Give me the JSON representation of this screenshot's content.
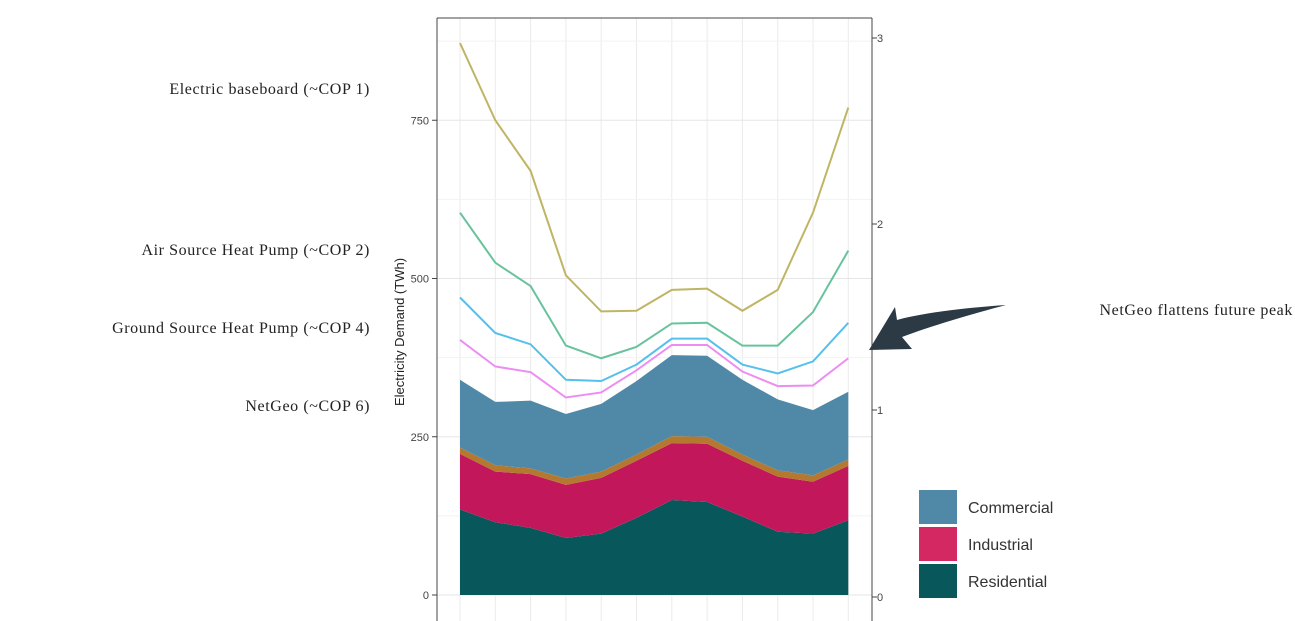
{
  "chart_data": {
    "type": "area",
    "title": "",
    "xlabel": "",
    "ylabel": "Electricity Demand (TWh)",
    "ylim": [
      0,
      920
    ],
    "yticks": [
      0,
      250,
      500,
      750
    ],
    "y2ticks": [
      "0",
      "1",
      "2",
      "3"
    ],
    "x": [
      1,
      2,
      3,
      4,
      5,
      6,
      7,
      8,
      9,
      10,
      11,
      12
    ],
    "stacked_series": [
      {
        "name": "Residential",
        "color": "#07575b",
        "values": [
          135,
          115,
          106,
          90,
          97,
          122,
          150,
          147,
          124,
          100,
          97,
          118
        ]
      },
      {
        "name": "",
        "color": "#c2185b",
        "values": [
          88,
          80,
          85,
          84,
          88,
          90,
          90,
          92,
          88,
          87,
          82,
          86
        ]
      },
      {
        "name": "Industrial",
        "color": "#d42863",
        "values": [
          0,
          0,
          0,
          0,
          0,
          0,
          0,
          0,
          0,
          0,
          0,
          0
        ]
      },
      {
        "name": "",
        "color": "#b5782f",
        "values": [
          10,
          10,
          9,
          10,
          10,
          10,
          11,
          11,
          10,
          10,
          10,
          10
        ]
      },
      {
        "name": "Commercial",
        "color": "#5089a8",
        "values": [
          107,
          100,
          107,
          102,
          107,
          116,
          128,
          128,
          118,
          112,
          103,
          107
        ]
      }
    ],
    "line_series": [
      {
        "name": "",
        "color": "#bfb564",
        "values": [
          872,
          750,
          670,
          505,
          448,
          449,
          482,
          484,
          449,
          482,
          604,
          770
        ]
      },
      {
        "name": "",
        "color": "#68c39c",
        "values": [
          604,
          525,
          488,
          394,
          374,
          392,
          429,
          430,
          394,
          394,
          447,
          544
        ]
      },
      {
        "name": "",
        "color": "#56c0ec",
        "values": [
          470,
          414,
          396,
          340,
          338,
          364,
          405,
          405,
          364,
          350,
          369,
          430
        ]
      },
      {
        "name": "",
        "color": "#ec8df2",
        "values": [
          403,
          361,
          352,
          312,
          320,
          355,
          395,
          395,
          353,
          330,
          331,
          374
        ]
      }
    ],
    "legend": {
      "position": "bottom-right",
      "entries": [
        "Commercial",
        "Industrial",
        "Residential"
      ]
    }
  },
  "annotations": {
    "baseboard": "Electric baseboard (~COP 1)",
    "ashp": "Air Source Heat Pump (~COP 2)",
    "gshp": "Ground Source Heat Pump (~COP 4)",
    "netgeo": "NetGeo (~COP 6)",
    "callout": "NetGeo flattens future peak"
  },
  "colors": {
    "arrow": "#2c3a45",
    "grid": "#ebebeb",
    "panel_border": "#444444"
  }
}
